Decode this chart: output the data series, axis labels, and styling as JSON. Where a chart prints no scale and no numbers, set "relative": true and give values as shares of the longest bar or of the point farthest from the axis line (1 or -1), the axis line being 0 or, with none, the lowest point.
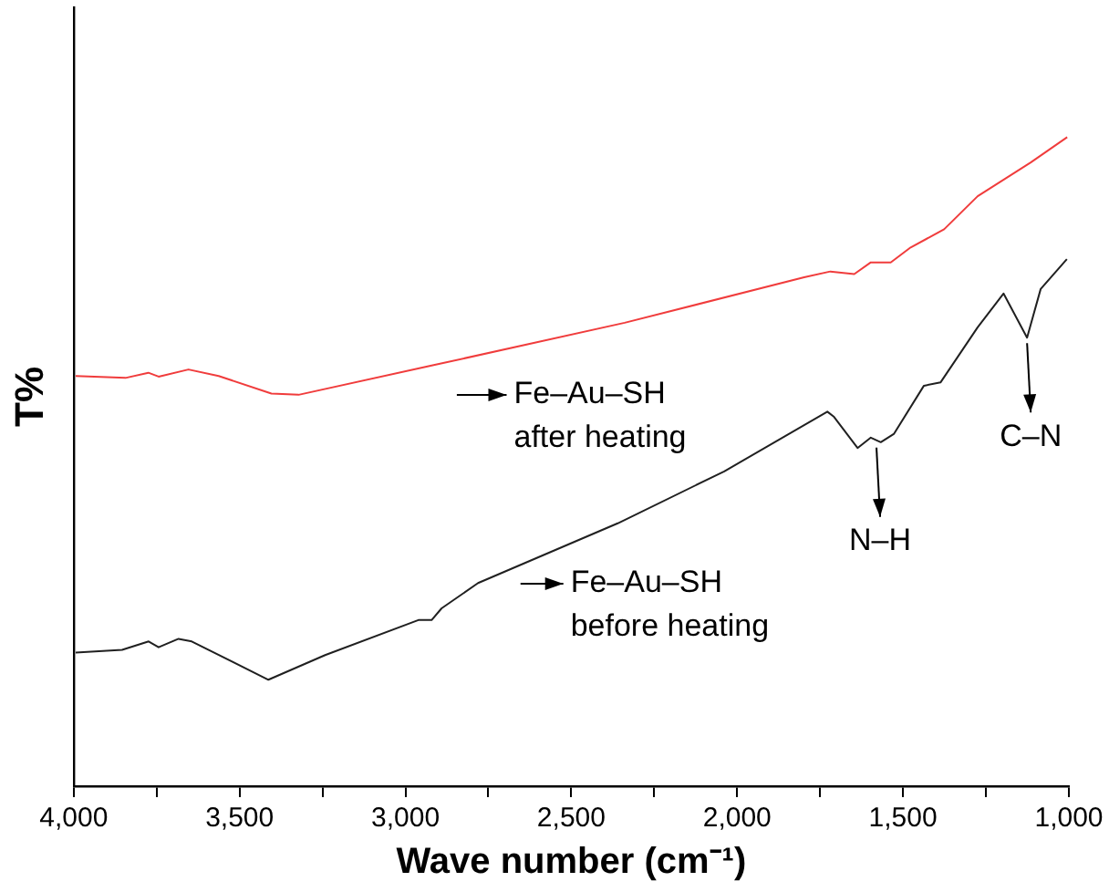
{
  "chart_data": {
    "type": "line",
    "xlabel": "Wave number (cm⁻¹)",
    "ylabel": "T%",
    "relative": true,
    "grid": false,
    "legend": false,
    "marker": "none",
    "line_style": "solid",
    "xlim": [
      4000,
      1000
    ],
    "xticks": [
      {
        "value": 4000,
        "label": "4,000"
      },
      {
        "value": 3750,
        "label": null
      },
      {
        "value": 3500,
        "label": "3,500"
      },
      {
        "value": 3250,
        "label": null
      },
      {
        "value": 3000,
        "label": "3,000"
      },
      {
        "value": 2750,
        "label": null
      },
      {
        "value": 2500,
        "label": "2,500"
      },
      {
        "value": 2250,
        "label": null
      },
      {
        "value": 2000,
        "label": "2,000"
      },
      {
        "value": 1750,
        "label": null
      },
      {
        "value": 1500,
        "label": "1,500"
      },
      {
        "value": 1250,
        "label": null
      },
      {
        "value": 1000,
        "label": "1,000"
      }
    ],
    "tick_labels": "x",
    "series": [
      {
        "name": "Fe–Au–SH after heating",
        "color": "#f03c3c",
        "x": [
          3994,
          3844,
          3775,
          3744,
          3654,
          3563,
          3404,
          3322,
          2921,
          2339,
          1798,
          1719,
          1647,
          1597,
          1537,
          1477,
          1376,
          1275,
          1115,
          1005
        ],
        "values": [
          0.632,
          0.629,
          0.637,
          0.631,
          0.642,
          0.632,
          0.605,
          0.603,
          0.648,
          0.714,
          0.784,
          0.793,
          0.789,
          0.807,
          0.807,
          0.83,
          0.858,
          0.909,
          0.961,
          1.0
        ]
      },
      {
        "name": "Fe–Au–SH before heating",
        "color": "#202020",
        "x": [
          3994,
          3854,
          3774,
          3744,
          3684,
          3644,
          3413,
          3242,
          2961,
          2921,
          2891,
          2781,
          2360,
          2039,
          1728,
          1708,
          1637,
          1597,
          1567,
          1527,
          1437,
          1387,
          1275,
          1197,
          1126,
          1085,
          1006
        ],
        "values": [
          0.206,
          0.21,
          0.223,
          0.214,
          0.227,
          0.223,
          0.164,
          0.202,
          0.256,
          0.256,
          0.274,
          0.313,
          0.405,
          0.485,
          0.577,
          0.569,
          0.521,
          0.537,
          0.53,
          0.543,
          0.617,
          0.622,
          0.707,
          0.759,
          0.691,
          0.766,
          0.812
        ]
      }
    ],
    "annotations": [
      {
        "text": "N–H",
        "x": 1580,
        "y": 0.53
      },
      {
        "text": "C–N",
        "x": 1126,
        "y": 0.691
      }
    ]
  }
}
